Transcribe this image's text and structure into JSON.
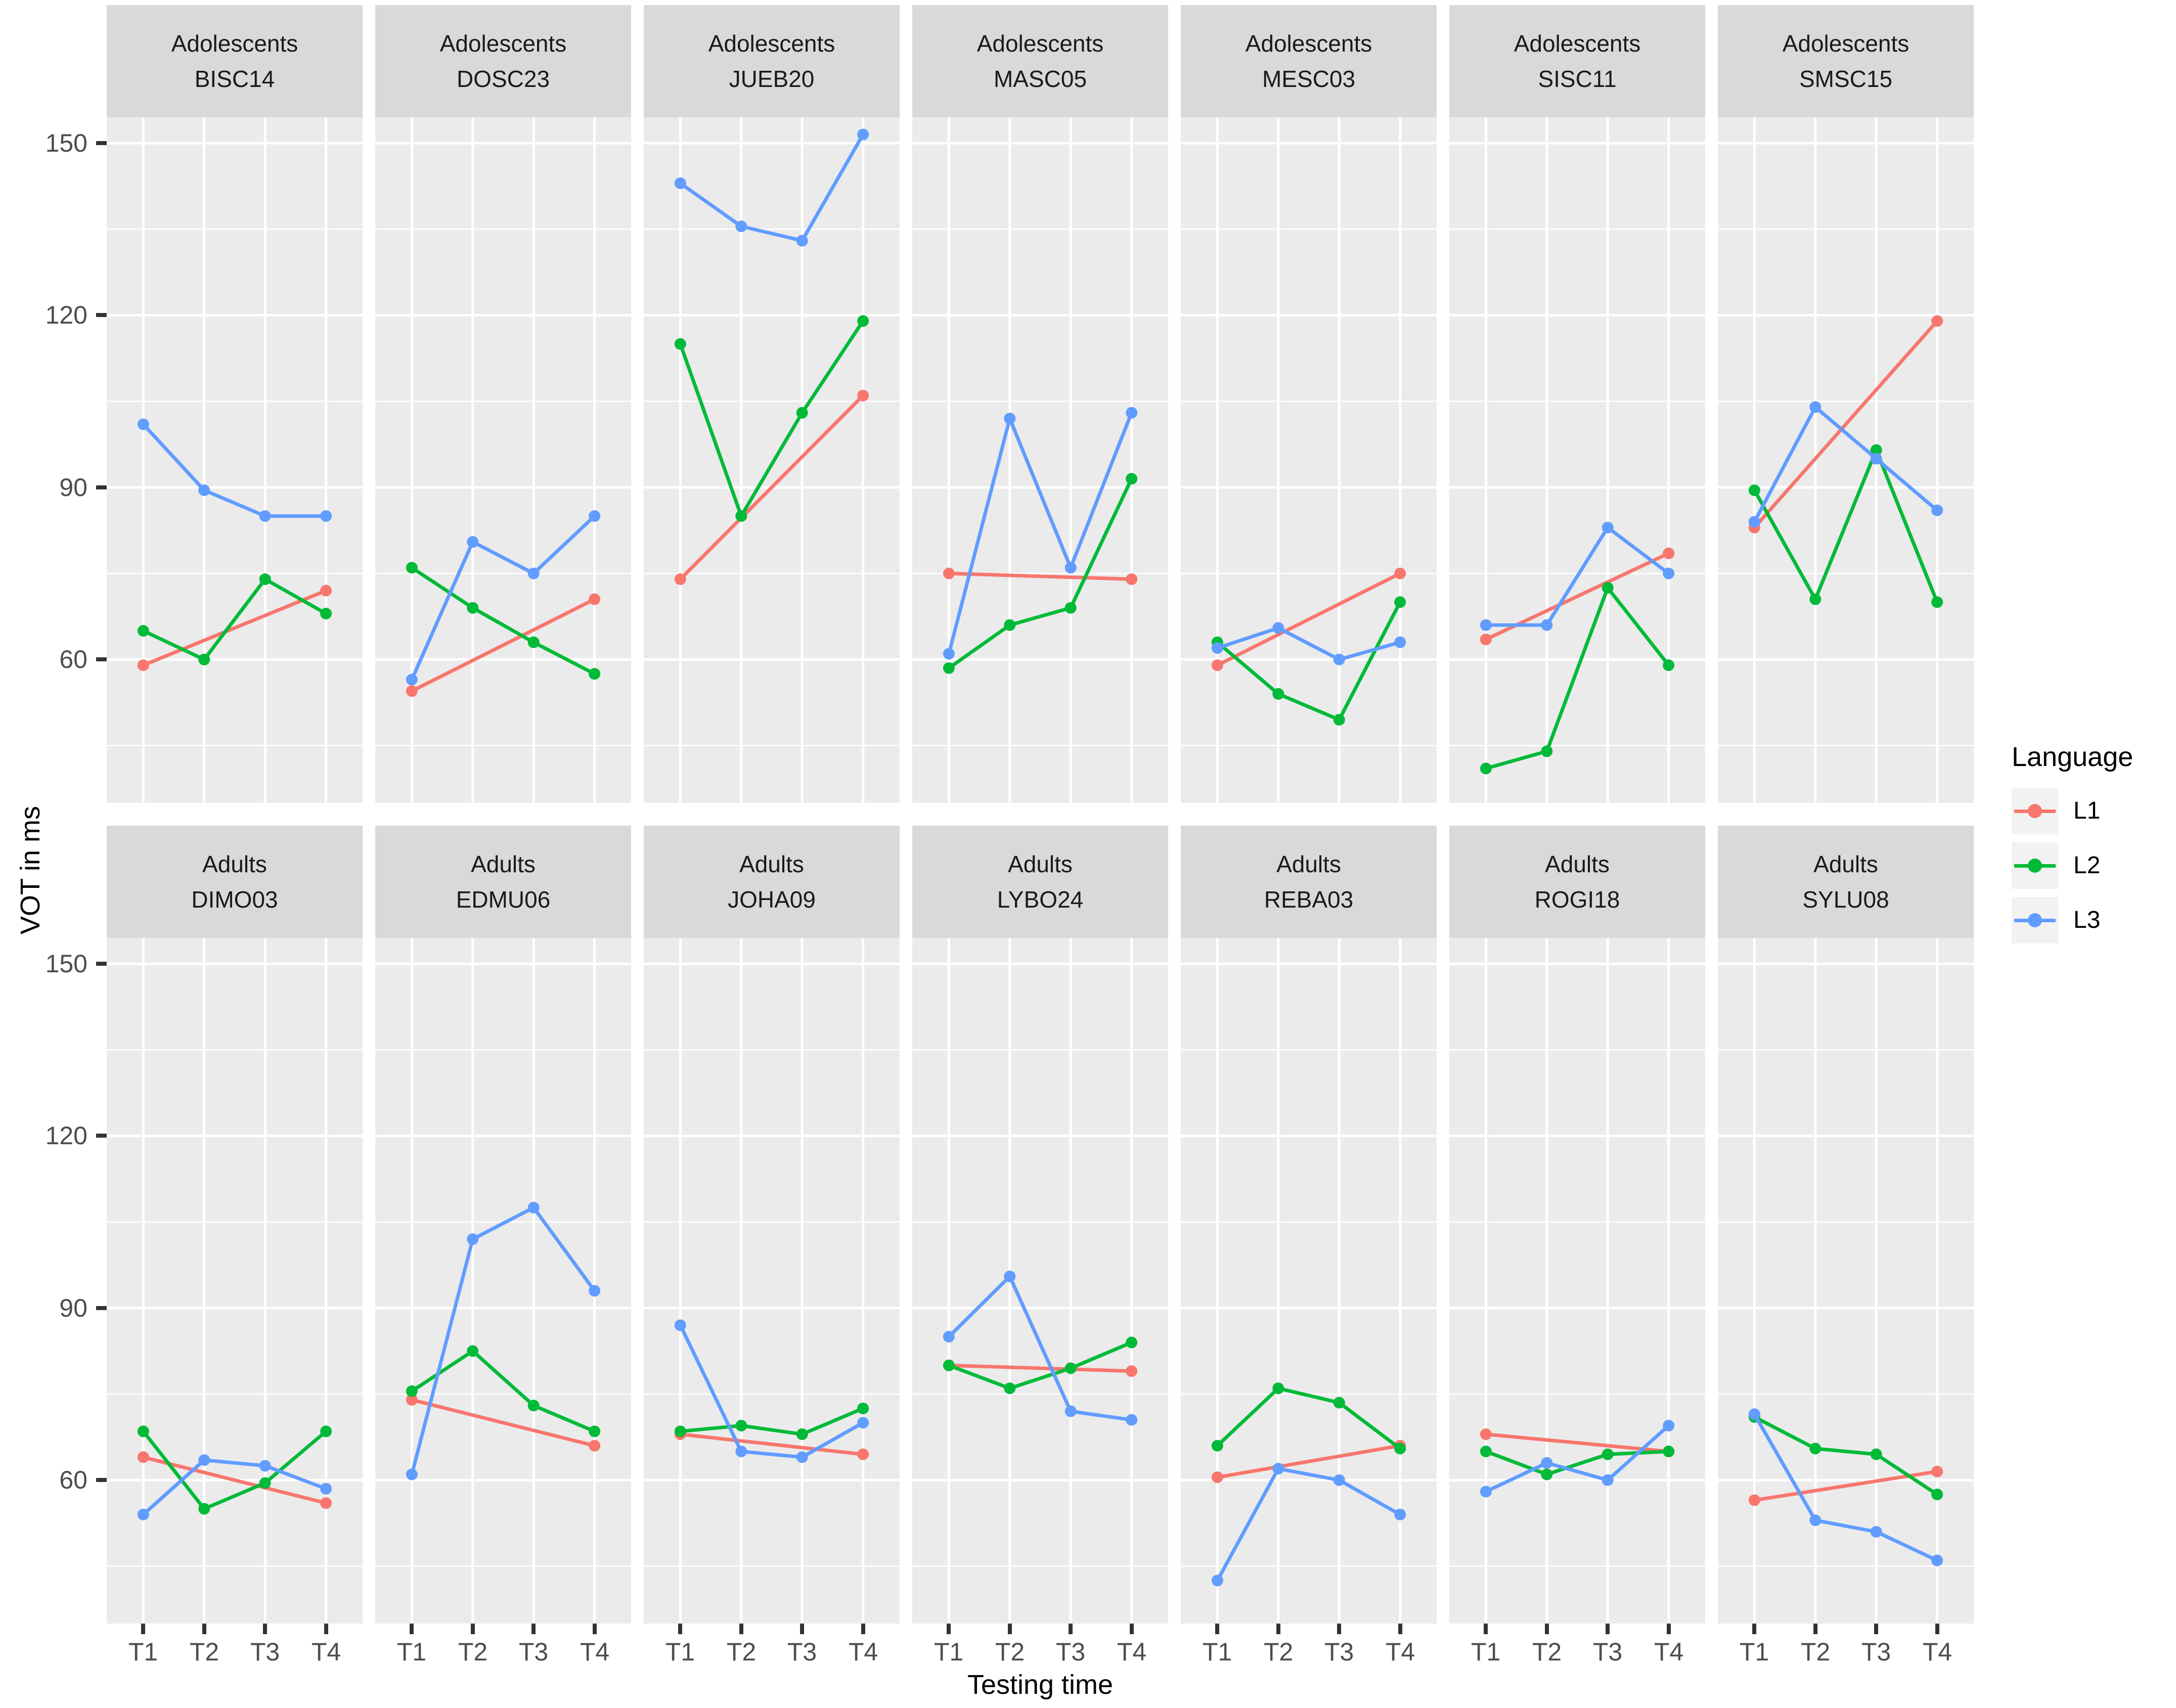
{
  "figure": {
    "background": "#ffffff",
    "panel_background": "#EBEBEB",
    "strip_background": "#D9D9D9",
    "grid_color": "#FFFFFF",
    "tick_text_color": "#4D4D4D",
    "y_axis_title": "VOT in ms",
    "x_axis_title": "Testing time"
  },
  "chart_data": {
    "type": "line",
    "title": "",
    "xlabel": "Testing time",
    "ylabel": "VOT in ms",
    "x": [
      "T1",
      "T2",
      "T3",
      "T4"
    ],
    "y_ticks": [
      60,
      90,
      120,
      150
    ],
    "ylim": [
      35,
      154.5
    ],
    "grid": "white major+minor horizontal, white major vertical, on gray panels",
    "legend": {
      "title": "Language",
      "position": "right",
      "entries": [
        {
          "label": "L1",
          "color": "#F8766D"
        },
        {
          "label": "L2",
          "color": "#00BA38"
        },
        {
          "label": "L3",
          "color": "#619CFF"
        }
      ]
    },
    "facet_rows": [
      "Adolescents",
      "Adults"
    ],
    "series_order": [
      "L1",
      "L2",
      "L3"
    ],
    "facets": [
      {
        "group": "Adolescents",
        "id": "BISC14",
        "series": {
          "L1": [
            59,
            null,
            null,
            72
          ],
          "L2": [
            65,
            60,
            74,
            68
          ],
          "L3": [
            101,
            89.5,
            85,
            85
          ]
        }
      },
      {
        "group": "Adolescents",
        "id": "DOSC23",
        "series": {
          "L1": [
            54.5,
            null,
            null,
            70.5
          ],
          "L2": [
            76,
            69,
            63,
            57.5
          ],
          "L3": [
            56.5,
            80.5,
            75,
            85
          ]
        }
      },
      {
        "group": "Adolescents",
        "id": "JUEB20",
        "series": {
          "L1": [
            74,
            null,
            null,
            106
          ],
          "L2": [
            115,
            85,
            103,
            119
          ],
          "L3": [
            143,
            135.5,
            133,
            151.5
          ]
        }
      },
      {
        "group": "Adolescents",
        "id": "MASC05",
        "series": {
          "L1": [
            75,
            null,
            null,
            74
          ],
          "L2": [
            58.5,
            66,
            69,
            91.5
          ],
          "L3": [
            61,
            102,
            76,
            103
          ]
        }
      },
      {
        "group": "Adolescents",
        "id": "MESC03",
        "series": {
          "L1": [
            59,
            null,
            null,
            75
          ],
          "L2": [
            63,
            54,
            49.5,
            70
          ],
          "L3": [
            62,
            65.5,
            60,
            63
          ]
        }
      },
      {
        "group": "Adolescents",
        "id": "SISC11",
        "series": {
          "L1": [
            63.5,
            null,
            null,
            78.5
          ],
          "L2": [
            41,
            44,
            72.5,
            59
          ],
          "L3": [
            66,
            66,
            83,
            75
          ]
        }
      },
      {
        "group": "Adolescents",
        "id": "SMSC15",
        "series": {
          "L1": [
            83,
            null,
            null,
            119
          ],
          "L2": [
            89.5,
            70.5,
            96.5,
            70
          ],
          "L3": [
            84,
            104,
            95,
            86
          ]
        }
      },
      {
        "group": "Adults",
        "id": "DIMO03",
        "series": {
          "L1": [
            64,
            null,
            null,
            56
          ],
          "L2": [
            68.5,
            55,
            59.5,
            68.5
          ],
          "L3": [
            54,
            63.5,
            62.5,
            58.5
          ]
        }
      },
      {
        "group": "Adults",
        "id": "EDMU06",
        "series": {
          "L1": [
            74,
            null,
            null,
            66
          ],
          "L2": [
            75.5,
            82.5,
            73,
            68.5
          ],
          "L3": [
            61,
            102,
            107.5,
            93
          ]
        }
      },
      {
        "group": "Adults",
        "id": "JOHA09",
        "series": {
          "L1": [
            68,
            null,
            null,
            64.5
          ],
          "L2": [
            68.5,
            69.5,
            68,
            72.5
          ],
          "L3": [
            87,
            65,
            64,
            70
          ]
        }
      },
      {
        "group": "Adults",
        "id": "LYBO24",
        "series": {
          "L1": [
            80,
            null,
            null,
            79
          ],
          "L2": [
            80,
            76,
            79.5,
            84
          ],
          "L3": [
            85,
            95.5,
            72,
            70.5
          ]
        }
      },
      {
        "group": "Adults",
        "id": "REBA03",
        "series": {
          "L1": [
            60.5,
            null,
            null,
            66
          ],
          "L2": [
            66,
            76,
            73.5,
            65.5
          ],
          "L3": [
            42.5,
            62,
            60,
            54
          ]
        }
      },
      {
        "group": "Adults",
        "id": "ROGI18",
        "series": {
          "L1": [
            68,
            null,
            null,
            65
          ],
          "L2": [
            65,
            61,
            64.5,
            65
          ],
          "L3": [
            58,
            63,
            60,
            69.5
          ]
        }
      },
      {
        "group": "Adults",
        "id": "SYLU08",
        "series": {
          "L1": [
            56.5,
            null,
            null,
            61.5
          ],
          "L2": [
            71,
            65.5,
            64.5,
            57.5
          ],
          "L3": [
            71.5,
            53,
            51,
            46
          ]
        }
      }
    ]
  }
}
